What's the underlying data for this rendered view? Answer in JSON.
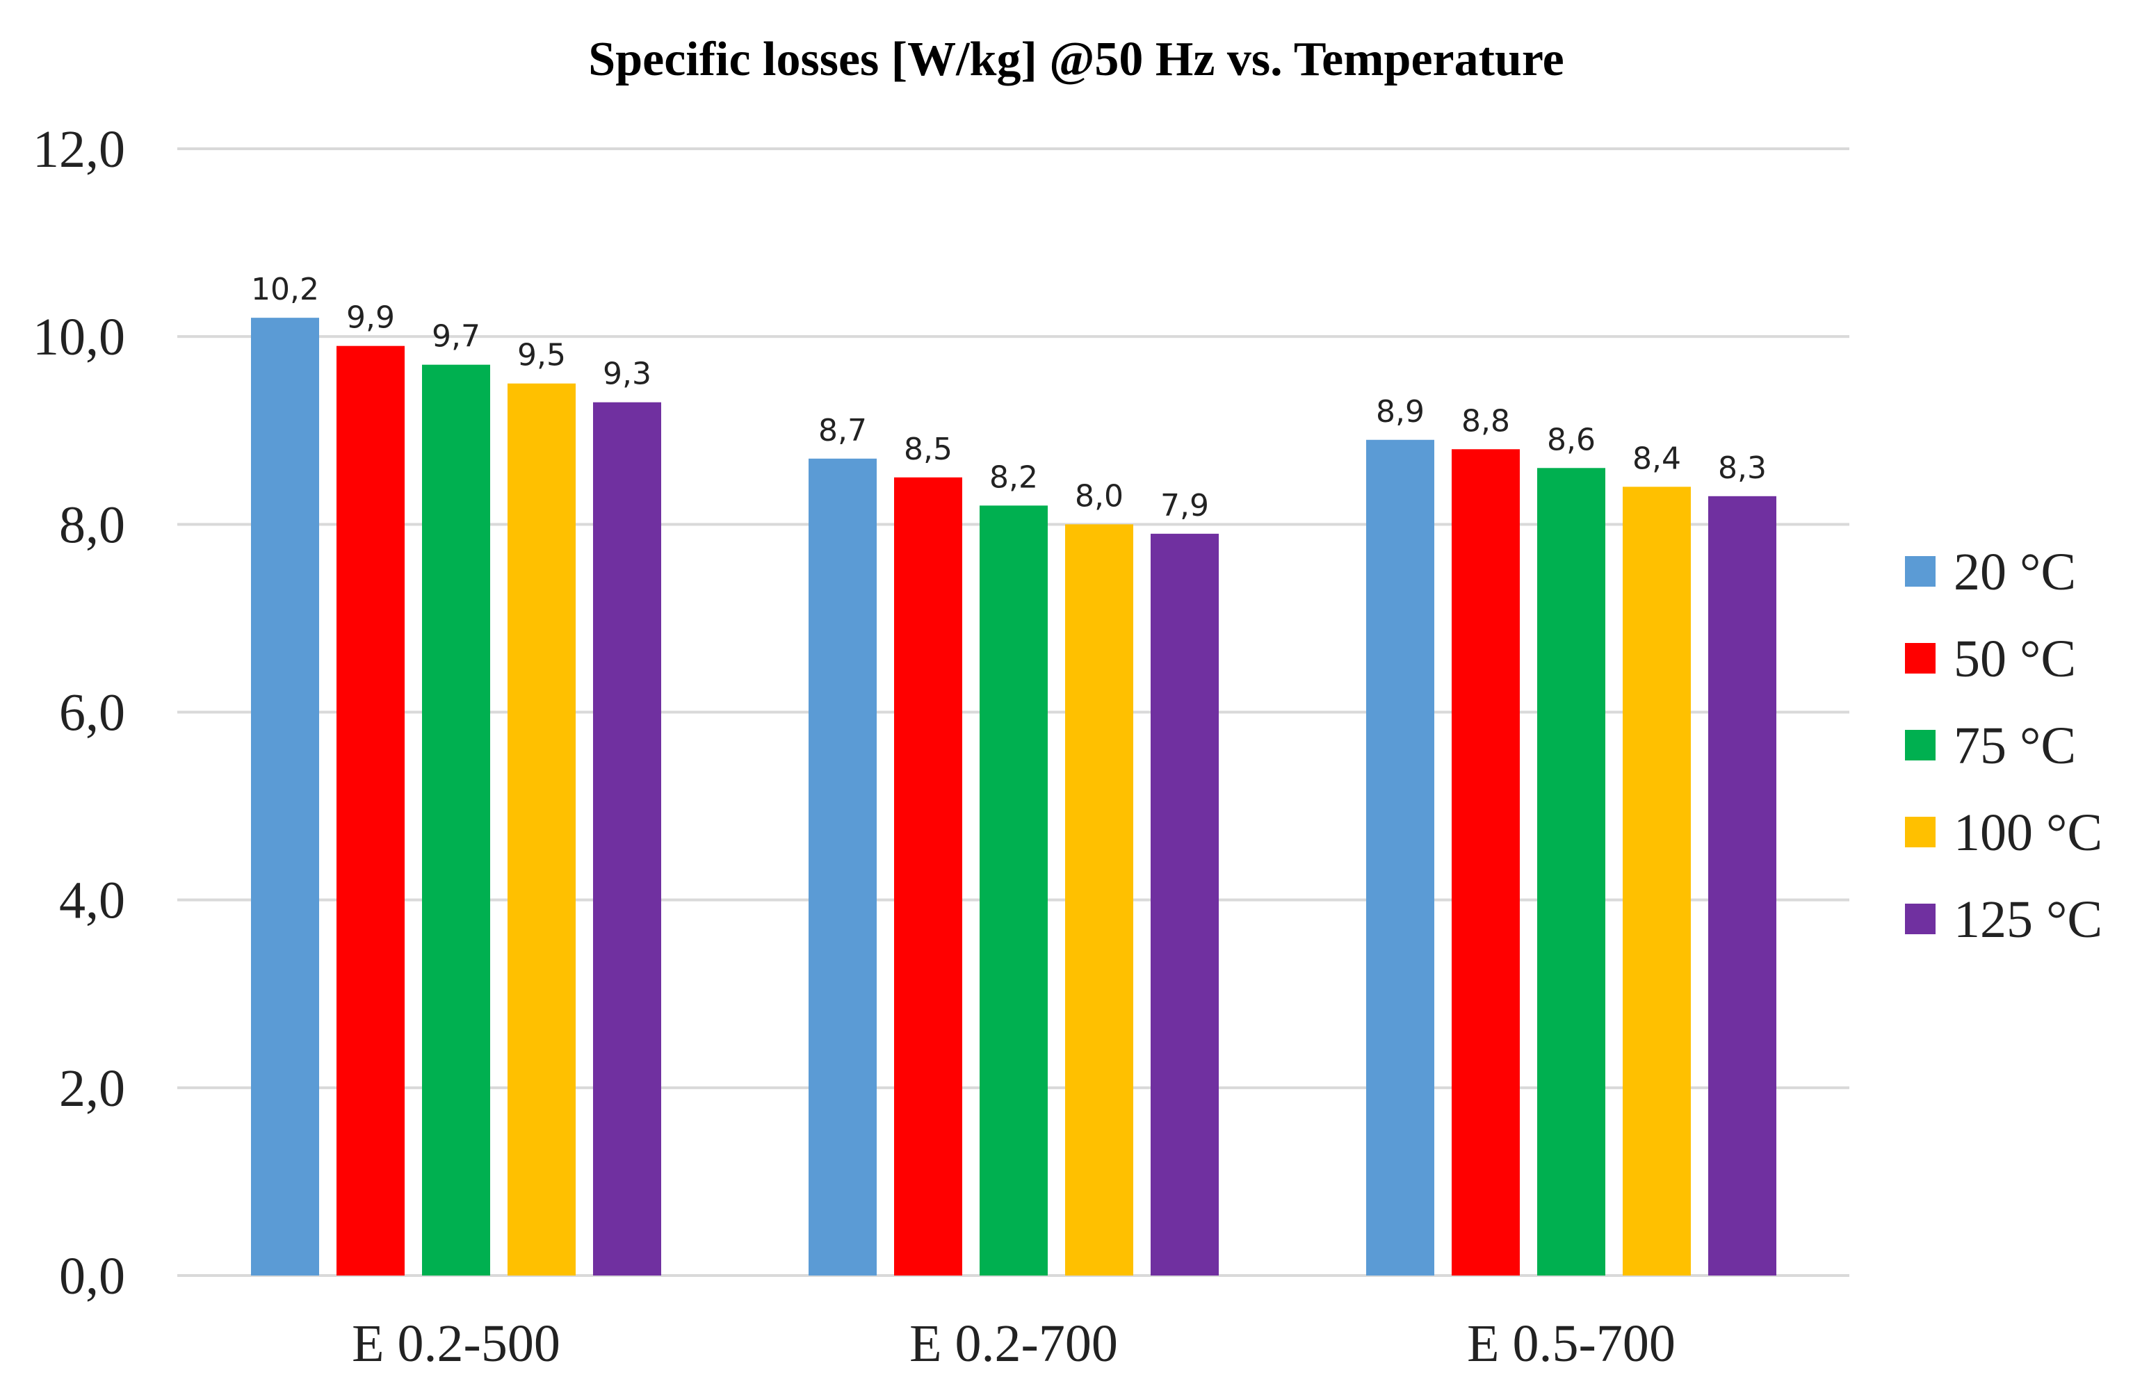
{
  "chart_data": {
    "type": "bar",
    "title": "Specific losses [W/kg] @50 Hz vs. Temperature",
    "xlabel": "",
    "ylabel": "",
    "categories": [
      "E 0.2-500",
      "E 0.2-700",
      "E 0.5-700"
    ],
    "ylim": [
      0,
      12
    ],
    "yticks": [
      0,
      2,
      4,
      6,
      8,
      10,
      12
    ],
    "ytick_labels": [
      "0,0",
      "2,0",
      "4,0",
      "6,0",
      "8,0",
      "10,0",
      "12,0"
    ],
    "grid": true,
    "legend_position": "right",
    "series": [
      {
        "name": "20 °C",
        "color": "#5b9bd5",
        "values": [
          10.2,
          8.7,
          8.9
        ],
        "labels": [
          "10,2",
          "8,7",
          "8,9"
        ]
      },
      {
        "name": "50 °C",
        "color": "#ff0000",
        "values": [
          9.9,
          8.5,
          8.8
        ],
        "labels": [
          "9,9",
          "8,5",
          "8,8"
        ]
      },
      {
        "name": "75 °C",
        "color": "#00b050",
        "values": [
          9.7,
          8.2,
          8.6
        ],
        "labels": [
          "9,7",
          "8,2",
          "8,6"
        ]
      },
      {
        "name": "100 °C",
        "color": "#ffc000",
        "values": [
          9.5,
          8.0,
          8.4
        ],
        "labels": [
          "9,5",
          "8,0",
          "8,4"
        ]
      },
      {
        "name": "125 °C",
        "color": "#7030a0",
        "values": [
          9.3,
          7.9,
          8.3
        ],
        "labels": [
          "9,3",
          "7,9",
          "8,3"
        ]
      }
    ]
  }
}
